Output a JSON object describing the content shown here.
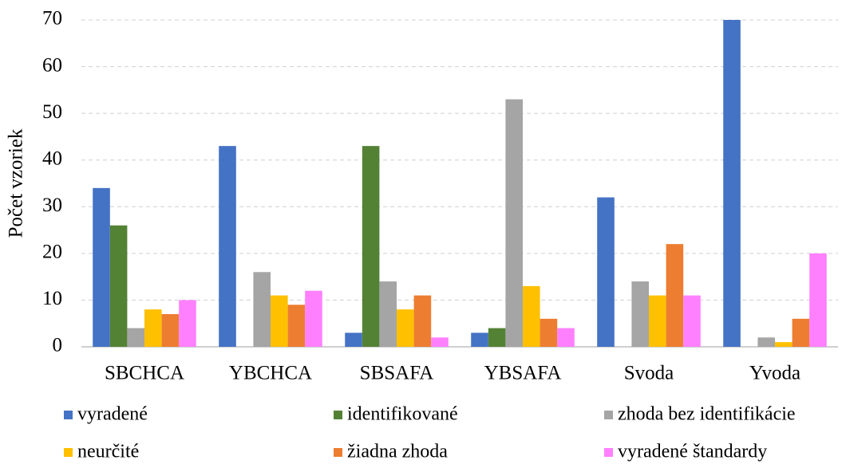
{
  "chart_data": {
    "type": "bar",
    "y_label": "Počet vzoriek",
    "categories": [
      "SBCHCA",
      "YBCHCA",
      "SBSAFA",
      "YBSAFA",
      "Svoda",
      "Yvoda"
    ],
    "series": [
      {
        "name": "vyradené",
        "color": "#4472c4",
        "values": [
          34,
          43,
          3,
          3,
          32,
          70
        ]
      },
      {
        "name": "identifikované",
        "color": "#548235",
        "values": [
          26,
          0,
          43,
          4,
          0,
          0
        ]
      },
      {
        "name": "zhoda bez identifikácie",
        "color": "#a5a5a5",
        "values": [
          4,
          16,
          14,
          53,
          14,
          2
        ]
      },
      {
        "name": "neurčité",
        "color": "#ffc000",
        "values": [
          8,
          11,
          8,
          13,
          11,
          1
        ]
      },
      {
        "name": "žiadna zhoda",
        "color": "#ed7d31",
        "values": [
          7,
          9,
          11,
          6,
          22,
          6
        ]
      },
      {
        "name": "vyradené štandardy",
        "color": "#ff80ff",
        "values": [
          10,
          12,
          2,
          4,
          11,
          20
        ]
      }
    ],
    "ylim": [
      0,
      70
    ],
    "yticks": [
      0,
      10,
      20,
      30,
      40,
      50,
      60,
      70
    ],
    "grid": true,
    "legend": "bottom"
  }
}
